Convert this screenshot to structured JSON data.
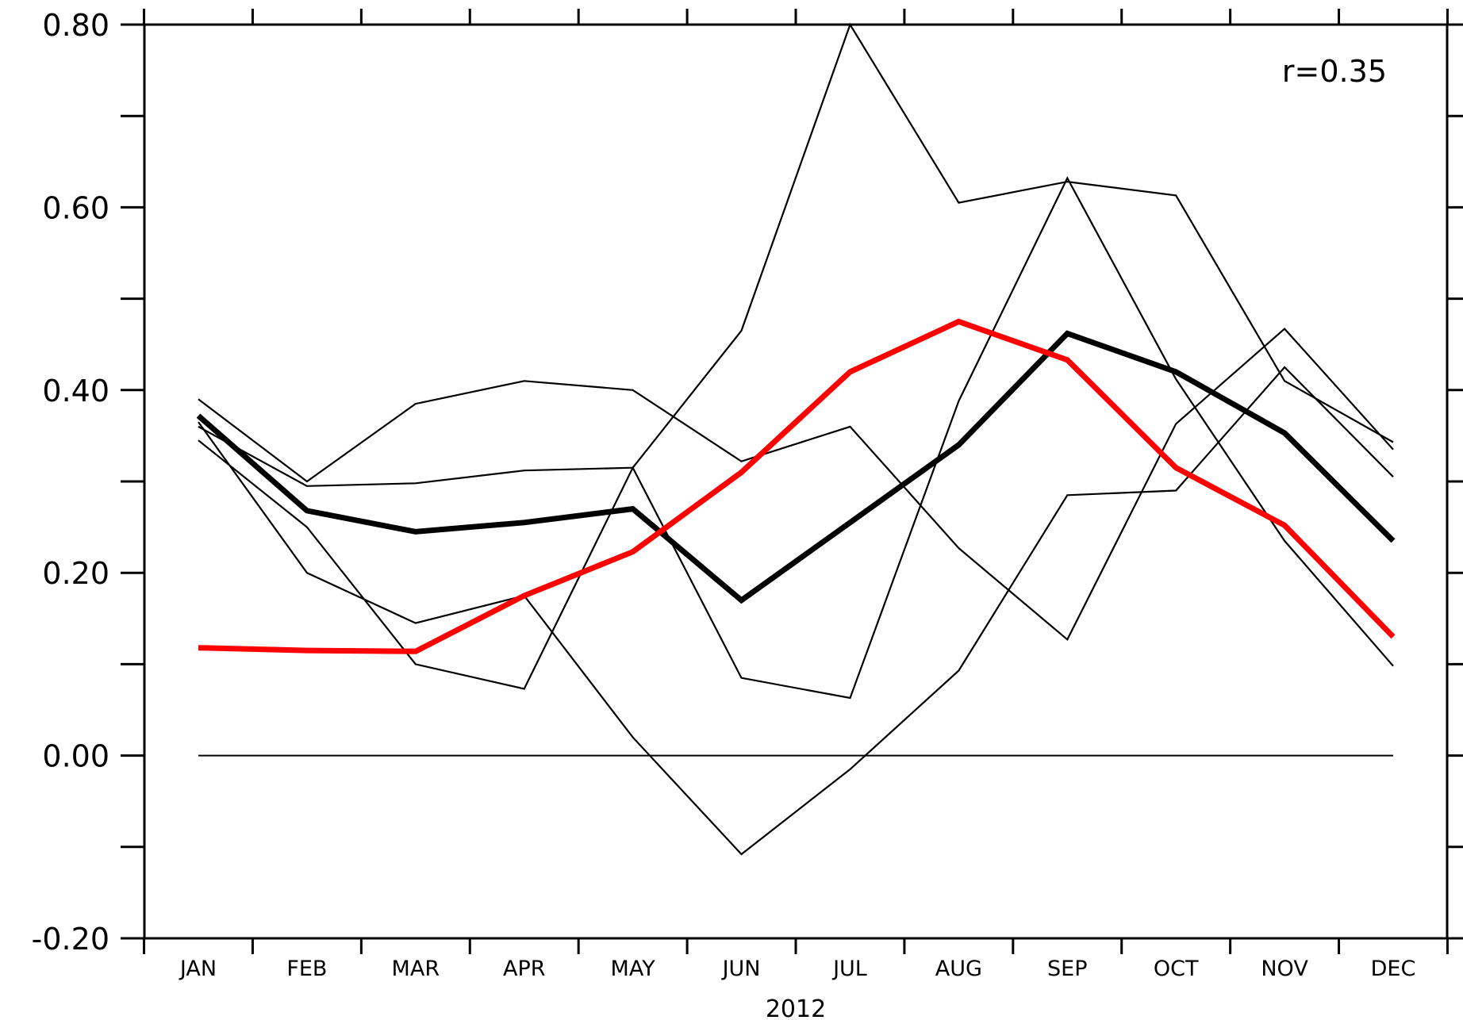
{
  "chart_data": {
    "type": "line",
    "title": "",
    "xlabel": "2012",
    "ylabel": "",
    "annotation": "r=0.35",
    "categories": [
      "JAN",
      "FEB",
      "MAR",
      "APR",
      "MAY",
      "JUN",
      "JUL",
      "AUG",
      "SEP",
      "OCT",
      "NOV",
      "DEC"
    ],
    "ylim": [
      -0.2,
      0.8
    ],
    "yticks": [
      -0.2,
      0.0,
      0.2,
      0.4,
      0.6,
      0.8
    ],
    "ytick_labels": [
      "-0.20",
      "0.00",
      "0.20",
      "0.40",
      "0.60",
      "0.80"
    ],
    "yminor_step": 0.1,
    "grid": false,
    "zero_line": true,
    "series": [
      {
        "values": [
          0.365,
          0.2,
          0.145,
          0.175,
          0.02,
          -0.108,
          -0.015,
          0.093,
          0.285,
          0.29,
          0.425,
          0.305
        ],
        "color": "#000000",
        "weight": "thin"
      },
      {
        "values": [
          0.39,
          0.3,
          0.385,
          0.41,
          0.4,
          0.322,
          0.36,
          0.227,
          0.127,
          0.363,
          0.467,
          0.335
        ],
        "color": "#000000",
        "weight": "thin"
      },
      {
        "values": [
          0.345,
          0.25,
          0.1,
          0.073,
          0.315,
          0.085,
          0.063,
          0.388,
          0.632,
          0.412,
          0.235,
          0.098
        ],
        "color": "#000000",
        "weight": "thin"
      },
      {
        "values": [
          0.36,
          0.295,
          0.298,
          0.312,
          0.315,
          0.465,
          0.8,
          0.605,
          0.628,
          0.613,
          0.41,
          0.343
        ],
        "color": "#000000",
        "weight": "thin"
      },
      {
        "values": [
          0.372,
          0.268,
          0.245,
          0.255,
          0.27,
          0.17,
          0.255,
          0.34,
          0.462,
          0.42,
          0.353,
          0.235
        ],
        "color": "#000000",
        "weight": "thick"
      },
      {
        "values": [
          0.118,
          0.115,
          0.114,
          0.175,
          0.223,
          0.31,
          0.42,
          0.475,
          0.433,
          0.315,
          0.252,
          0.13
        ],
        "color": "#ff0000",
        "weight": "thick"
      }
    ]
  }
}
